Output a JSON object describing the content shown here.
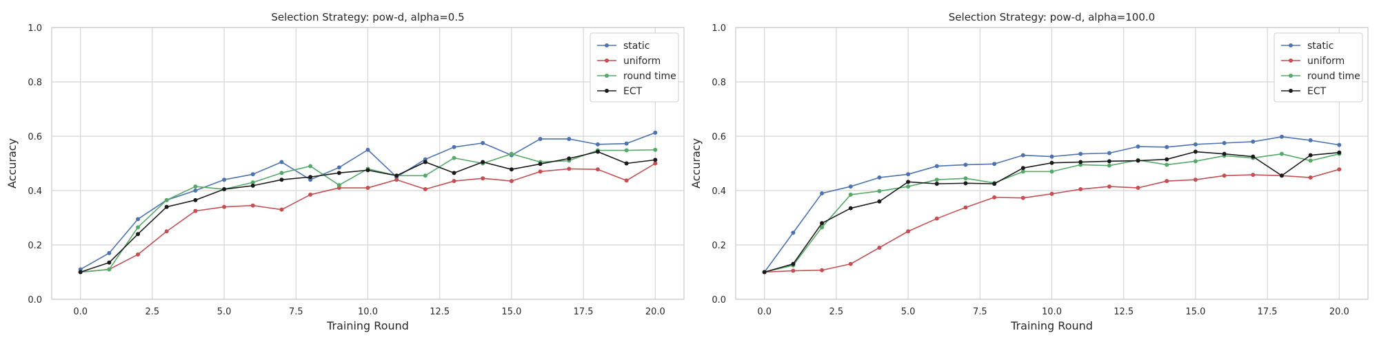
{
  "chart_data": [
    {
      "type": "line",
      "title": "Selection Strategy: pow-d, alpha=0.5",
      "xlabel": "Training Round",
      "ylabel": "Accuracy",
      "xlim": [
        -1,
        21
      ],
      "ylim": [
        0,
        1
      ],
      "xticks": [
        "0.0",
        "2.5",
        "5.0",
        "7.5",
        "10.0",
        "12.5",
        "15.0",
        "17.5",
        "20.0"
      ],
      "yticks": [
        "0.0",
        "0.2",
        "0.4",
        "0.6",
        "0.8",
        "1.0"
      ],
      "grid": true,
      "legend_position": "top-right",
      "x": [
        0,
        1,
        2,
        3,
        4,
        5,
        6,
        7,
        8,
        9,
        10,
        11,
        12,
        13,
        14,
        15,
        16,
        17,
        18,
        19,
        20
      ],
      "series": [
        {
          "name": "static",
          "color": "#4c72b0",
          "values": [
            0.11,
            0.17,
            0.295,
            0.365,
            0.4,
            0.44,
            0.46,
            0.505,
            0.44,
            0.485,
            0.55,
            0.45,
            0.515,
            0.56,
            0.575,
            0.53,
            0.59,
            0.59,
            0.57,
            0.573,
            0.613
          ]
        },
        {
          "name": "uniform",
          "color": "#c44e52",
          "values": [
            0.1,
            0.11,
            0.165,
            0.25,
            0.325,
            0.34,
            0.345,
            0.33,
            0.385,
            0.41,
            0.41,
            0.44,
            0.405,
            0.435,
            0.445,
            0.435,
            0.47,
            0.48,
            0.478,
            0.437,
            0.5
          ]
        },
        {
          "name": "round time",
          "color": "#55a868",
          "values": [
            0.1,
            0.11,
            0.265,
            0.365,
            0.415,
            0.405,
            0.43,
            0.465,
            0.49,
            0.42,
            0.48,
            0.455,
            0.455,
            0.52,
            0.5,
            0.535,
            0.505,
            0.51,
            0.548,
            0.548,
            0.55
          ]
        },
        {
          "name": "ECT",
          "color": "#1a1a1a",
          "values": [
            0.1,
            0.135,
            0.24,
            0.34,
            0.365,
            0.405,
            0.418,
            0.44,
            0.45,
            0.465,
            0.475,
            0.455,
            0.505,
            0.465,
            0.505,
            0.478,
            0.498,
            0.518,
            0.543,
            0.5,
            0.513
          ]
        }
      ]
    },
    {
      "type": "line",
      "title": "Selection Strategy: pow-d, alpha=100.0",
      "xlabel": "Training Round",
      "ylabel": "Accuracy",
      "xlim": [
        -1,
        21
      ],
      "ylim": [
        0,
        1
      ],
      "xticks": [
        "0.0",
        "2.5",
        "5.0",
        "7.5",
        "10.0",
        "12.5",
        "15.0",
        "17.5",
        "20.0"
      ],
      "yticks": [
        "0.0",
        "0.2",
        "0.4",
        "0.6",
        "0.8",
        "1.0"
      ],
      "grid": true,
      "legend_position": "top-right",
      "x": [
        0,
        1,
        2,
        3,
        4,
        5,
        6,
        7,
        8,
        9,
        10,
        11,
        12,
        13,
        14,
        15,
        16,
        17,
        18,
        19,
        20
      ],
      "series": [
        {
          "name": "static",
          "color": "#4c72b0",
          "values": [
            0.1,
            0.245,
            0.39,
            0.415,
            0.448,
            0.46,
            0.49,
            0.495,
            0.498,
            0.53,
            0.525,
            0.535,
            0.538,
            0.562,
            0.56,
            0.57,
            0.575,
            0.58,
            0.598,
            0.585,
            0.568
          ]
        },
        {
          "name": "uniform",
          "color": "#c44e52",
          "values": [
            0.1,
            0.105,
            0.107,
            0.13,
            0.19,
            0.25,
            0.297,
            0.338,
            0.375,
            0.373,
            0.388,
            0.405,
            0.415,
            0.41,
            0.435,
            0.44,
            0.455,
            0.458,
            0.455,
            0.448,
            0.478
          ]
        },
        {
          "name": "round time",
          "color": "#55a868",
          "values": [
            0.1,
            0.125,
            0.265,
            0.385,
            0.398,
            0.415,
            0.44,
            0.445,
            0.428,
            0.47,
            0.47,
            0.495,
            0.492,
            0.512,
            0.495,
            0.508,
            0.528,
            0.52,
            0.535,
            0.51,
            0.535
          ]
        },
        {
          "name": "ECT",
          "color": "#1a1a1a",
          "values": [
            0.1,
            0.13,
            0.28,
            0.335,
            0.36,
            0.432,
            0.425,
            0.427,
            0.425,
            0.483,
            0.502,
            0.505,
            0.508,
            0.51,
            0.515,
            0.543,
            0.535,
            0.525,
            0.455,
            0.53,
            0.54
          ]
        }
      ]
    }
  ]
}
